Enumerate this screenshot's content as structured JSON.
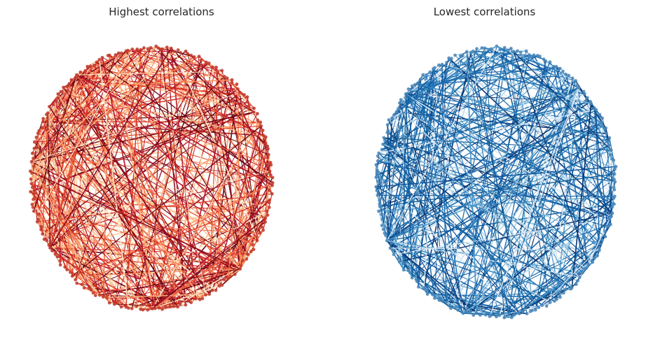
{
  "panels": [
    {
      "title": "Highest correlations",
      "node_color": "#c0392b",
      "edge_palette": [
        "#67000d",
        "#8b0a1e",
        "#b3122a",
        "#d7301f",
        "#ef6548",
        "#fc8d59",
        "#fdbb84",
        "#fee8c8"
      ],
      "node_count": 200,
      "edge_count": 520,
      "seed": 7
    },
    {
      "title": "Lowest correlations",
      "node_color": "#4a86b8",
      "edge_palette": [
        "#08306b",
        "#08519c",
        "#0b5c99",
        "#1764a5",
        "#2171b5",
        "#4292c6",
        "#9ecae1",
        "#dbe9f6"
      ],
      "node_count": 200,
      "edge_count": 420,
      "seed": 13
    }
  ]
}
